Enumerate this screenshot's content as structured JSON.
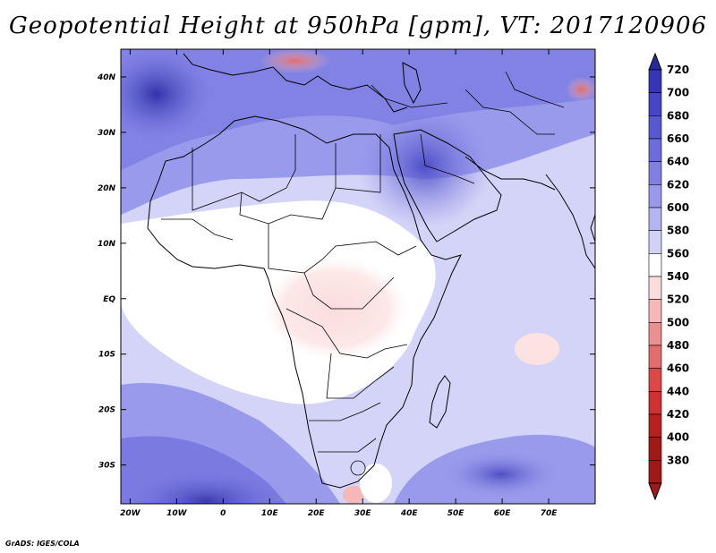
{
  "title": "Geopotential Height at 950hPa [gpm], VT: 2017120906",
  "footer": "GrADS: IGES/COLA",
  "map": {
    "lon_range": [
      -22,
      80
    ],
    "lat_range": [
      -37,
      45
    ],
    "lat_ticks": [
      {
        "lat": 40,
        "label": "40N"
      },
      {
        "lat": 30,
        "label": "30N"
      },
      {
        "lat": 20,
        "label": "20N"
      },
      {
        "lat": 10,
        "label": "10N"
      },
      {
        "lat": 0,
        "label": "EQ"
      },
      {
        "lat": -10,
        "label": "10S"
      },
      {
        "lat": -20,
        "label": "20S"
      },
      {
        "lat": -30,
        "label": "30S"
      }
    ],
    "lon_ticks": [
      {
        "lon": -20,
        "label": "20W"
      },
      {
        "lon": -10,
        "label": "10W"
      },
      {
        "lon": 0,
        "label": "0"
      },
      {
        "lon": 10,
        "label": "10E"
      },
      {
        "lon": 20,
        "label": "20E"
      },
      {
        "lon": 30,
        "label": "30E"
      },
      {
        "lon": 40,
        "label": "40E"
      },
      {
        "lon": 50,
        "label": "50E"
      },
      {
        "lon": 60,
        "label": "60E"
      },
      {
        "lon": 70,
        "label": "70E"
      }
    ]
  },
  "colorbar": {
    "levels": [
      "720",
      "700",
      "680",
      "660",
      "640",
      "620",
      "600",
      "580",
      "560",
      "540",
      "520",
      "500",
      "480",
      "460",
      "440",
      "420",
      "400",
      "380"
    ],
    "colors": [
      "#2828a0",
      "#3535b8",
      "#4545c8",
      "#5858d2",
      "#6c6cdc",
      "#8080e4",
      "#9999ec",
      "#b4b4f2",
      "#d2d2f8",
      "#ffffff",
      "#fbdcdc",
      "#f4b8b8",
      "#eb9090",
      "#e46c6c",
      "#dc4848",
      "#d03030",
      "#b82020",
      "#a01818"
    ]
  },
  "legend_colors": {
    "ocean_top": "#5a5ad4",
    "land": "#b6b6f0"
  }
}
